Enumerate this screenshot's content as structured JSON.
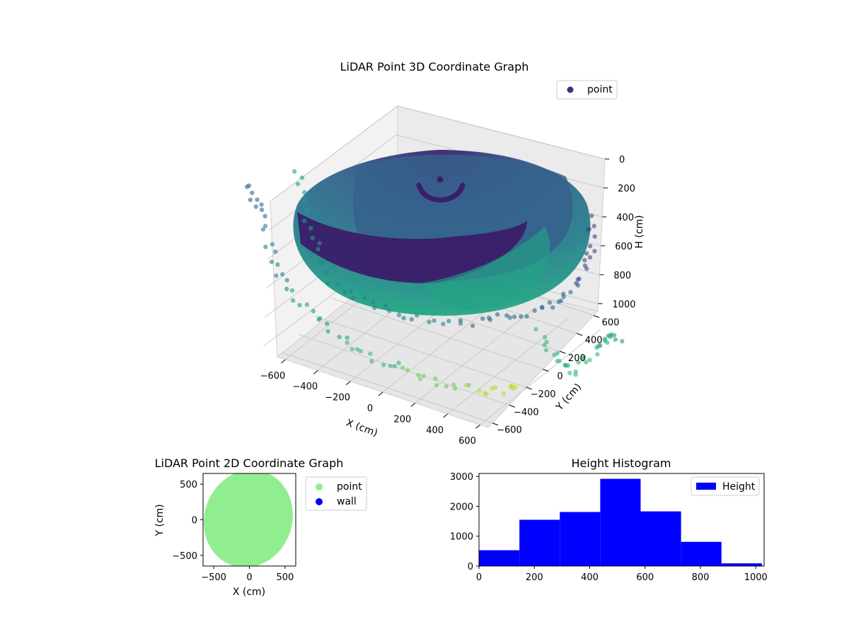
{
  "chart_data": [
    {
      "type": "scatter3d",
      "title": "LiDAR Point 3D Coordinate Graph",
      "xlabel": "X (cm)",
      "ylabel": "Y (cm)",
      "zlabel": "H (cm)",
      "xticks": [
        "−600",
        "−400",
        "−200",
        "0",
        "200",
        "400",
        "600"
      ],
      "yticks": [
        "−600",
        "−400",
        "−200",
        "0",
        "200",
        "400",
        "600"
      ],
      "zticks": [
        "0",
        "200",
        "400",
        "600",
        "800",
        "1000"
      ],
      "xlim": [
        -650,
        650
      ],
      "ylim": [
        -650,
        650
      ],
      "zlim": [
        0,
        1050
      ],
      "z_inverted": true,
      "colormap": "viridis",
      "legend": {
        "position": "top-right",
        "entries": [
          {
            "label": "point",
            "color": "#472c7a"
          }
        ]
      },
      "grid": true,
      "shape": "hemispherical bowl of radius about 620 cm centered near (0, 0), depth about 1000 cm, with outlying wall points around the rim"
    },
    {
      "type": "scatter",
      "title": "LiDAR Point 2D Coordinate Graph",
      "xlabel": "X (cm)",
      "ylabel": "Y (cm)",
      "xticks": [
        "−500",
        "0",
        "500"
      ],
      "yticks": [
        "500",
        "0",
        "−500"
      ],
      "xlim": [
        -650,
        650
      ],
      "ylim": [
        -650,
        650
      ],
      "legend": {
        "position": "outside-right",
        "entries": [
          {
            "label": "point",
            "color": "#90ee90"
          },
          {
            "label": "wall",
            "color": "#0000ff"
          }
        ]
      },
      "shape": "filled disc of points about 620 cm radius centered near (0, 0)"
    },
    {
      "type": "bar",
      "title": "Height Histogram",
      "xticks": [
        "0",
        "200",
        "400",
        "600",
        "800",
        "1000"
      ],
      "yticks": [
        "0",
        "1000",
        "2000",
        "3000"
      ],
      "xlim": [
        0,
        1030
      ],
      "ylim": [
        0,
        3100
      ],
      "bin_edges": [
        0,
        146,
        292,
        438,
        584,
        730,
        876,
        1022
      ],
      "values": [
        530,
        1550,
        1810,
        2920,
        1830,
        810,
        90
      ],
      "legend": {
        "position": "top-right",
        "entries": [
          {
            "label": "Height",
            "color": "#0000ff"
          }
        ]
      }
    }
  ]
}
